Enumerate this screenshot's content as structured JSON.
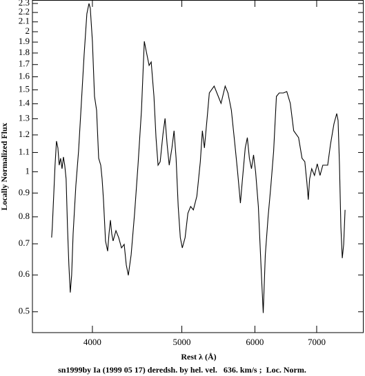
{
  "chart_data": {
    "type": "line",
    "caption": "sn1999by Ia (1999 05 17) deredsh. by hel. vel.   636. km/s ;  Loc. Norm.",
    "xlabel": "Rest λ (Å)",
    "ylabel": "Locally Normalized Flux",
    "xscale": "log",
    "yscale": "log",
    "xlim": [
      3444,
      7870
    ],
    "ylim": [
      0.451,
      2.34
    ],
    "xticks": [
      4000,
      5000,
      6000,
      7000
    ],
    "yticks": [
      0.5,
      0.6,
      0.7,
      0.8,
      0.9,
      1,
      1.1,
      1.2,
      1.3,
      1.4,
      1.5,
      1.6,
      1.7,
      1.8,
      1.9,
      2,
      2.1,
      2.2,
      2.3
    ],
    "x": [
      3613,
      3619,
      3644,
      3657,
      3670,
      3682,
      3695,
      3708,
      3721,
      3733,
      3746,
      3759,
      3772,
      3785,
      3798,
      3812,
      3838,
      3864,
      3891,
      3918,
      3945,
      3966,
      3979,
      4000,
      4021,
      4042,
      4063,
      4084,
      4098,
      4112,
      4133,
      4155,
      4169,
      4184,
      4198,
      4212,
      4242,
      4271,
      4301,
      4330,
      4353,
      4375,
      4406,
      4444,
      4482,
      4521,
      4553,
      4576,
      4608,
      4632,
      4664,
      4688,
      4712,
      4737,
      4770,
      4795,
      4820,
      4845,
      4878,
      4904,
      4929,
      4955,
      4981,
      5006,
      5041,
      5076,
      5111,
      5146,
      5191,
      5236,
      5263,
      5290,
      5327,
      5355,
      5420,
      5476,
      5514,
      5571,
      5610,
      5658,
      5708,
      5747,
      5787,
      5817,
      5857,
      5888,
      5918,
      5949,
      5980,
      6011,
      6052,
      6094,
      6126,
      6158,
      6201,
      6244,
      6287,
      6331,
      6375,
      6442,
      6497,
      6554,
      6610,
      6691,
      6749,
      6796,
      6831,
      6855,
      6878,
      6914,
      6962,
      7010,
      7059,
      7108,
      7158,
      7195,
      7245,
      7308,
      7359,
      7384,
      7410,
      7436,
      7462,
      7488,
      7514
    ],
    "series": [
      {
        "color": "#000000",
        "values": [
          0.722,
          0.76,
          1.033,
          1.164,
          1.125,
          1.033,
          1.069,
          1.015,
          1.076,
          1.033,
          0.965,
          0.76,
          0.63,
          0.55,
          0.599,
          0.735,
          0.933,
          1.106,
          1.403,
          1.781,
          2.185,
          2.3,
          2.246,
          1.907,
          1.452,
          1.356,
          1.069,
          1.033,
          0.965,
          0.871,
          0.71,
          0.675,
          0.735,
          0.787,
          0.735,
          0.71,
          0.747,
          0.722,
          0.686,
          0.698,
          0.63,
          0.599,
          0.663,
          0.814,
          1.033,
          1.356,
          1.907,
          1.812,
          1.693,
          1.722,
          1.452,
          1.184,
          1.033,
          1.051,
          1.204,
          1.302,
          1.144,
          1.033,
          1.125,
          1.225,
          1.069,
          0.842,
          0.722,
          0.686,
          0.722,
          0.814,
          0.842,
          0.828,
          0.886,
          1.051,
          1.225,
          1.125,
          1.311,
          1.477,
          1.528,
          1.452,
          1.403,
          1.528,
          1.477,
          1.356,
          1.144,
          0.998,
          0.856,
          0.965,
          1.125,
          1.184,
          1.069,
          1.015,
          1.087,
          0.998,
          0.842,
          0.62,
          0.497,
          0.663,
          0.8,
          0.933,
          1.106,
          1.452,
          1.477,
          1.477,
          1.487,
          1.403,
          1.225,
          1.184,
          1.069,
          1.051,
          0.949,
          0.871,
          0.965,
          1.015,
          0.982,
          1.04,
          0.982,
          1.033,
          1.033,
          1.033,
          1.144,
          1.267,
          1.334,
          1.289,
          1.033,
          0.76,
          0.652,
          0.698,
          0.828
        ]
      }
    ]
  }
}
